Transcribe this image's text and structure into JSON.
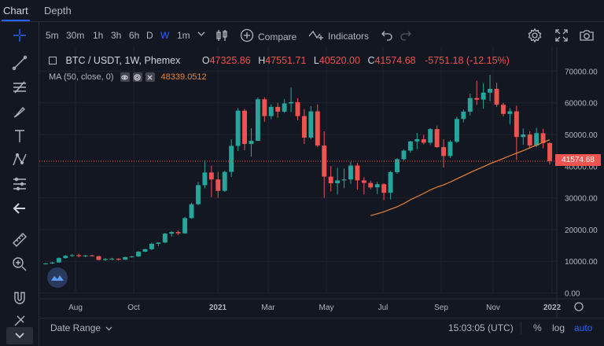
{
  "tabs": [
    {
      "label": "Chart",
      "active": true
    },
    {
      "label": "Depth",
      "active": false
    }
  ],
  "toolbar": {
    "timeframes": [
      {
        "label": "5m",
        "active": false
      },
      {
        "label": "30m",
        "active": false
      },
      {
        "label": "1h",
        "active": false
      },
      {
        "label": "3h",
        "active": false
      },
      {
        "label": "6h",
        "active": false
      },
      {
        "label": "D",
        "active": false
      },
      {
        "label": "W",
        "active": true
      },
      {
        "label": "1m",
        "active": false
      }
    ],
    "compare_label": "Compare",
    "indicators_label": "Indicators"
  },
  "left_tools": [
    "crosshair-icon",
    "trend-line-icon",
    "fib-icon",
    "brush-icon",
    "text-icon",
    "pattern-icon",
    "measure-icon",
    "back-arrow-icon",
    "ruler-icon",
    "zoom-in-icon",
    "magnet-icon",
    "lock-icon"
  ],
  "legend": {
    "symbol": "BTC / USDT, 1W, Phemex",
    "o_label": "O",
    "o_value": "47325.86",
    "h_label": "H",
    "h_value": "47551.71",
    "l_label": "L",
    "l_value": "40520.00",
    "c_label": "C",
    "c_value": "41574.68",
    "change": "-5751.18 (-12.15%)"
  },
  "ma": {
    "label": "MA (50, close, 0)",
    "value": "48339.0512"
  },
  "current_price": "41574.68",
  "bottom": {
    "date_range": "Date Range",
    "clock": "15:03:05 (UTC)",
    "percent": "%",
    "log": "log",
    "auto": "auto"
  },
  "colors": {
    "up": "#26a69a",
    "down": "#ef5350",
    "ma": "#e9853a",
    "background": "#131722",
    "accent": "#2962ff"
  },
  "chart_data": {
    "type": "candlestick",
    "x_ticks": [
      "Aug",
      "Oct",
      "2021",
      "Mar",
      "May",
      "Jul",
      "Sep",
      "Nov",
      "2022"
    ],
    "y_ticks": [
      "70000.00",
      "60000.00",
      "50000.00",
      "40000.00",
      "30000.00",
      "20000.00",
      "10000.00",
      "0.00"
    ],
    "ylim": [
      0,
      70000
    ],
    "candles": [
      [
        9200,
        9400,
        9000,
        9300
      ],
      [
        9300,
        9800,
        9100,
        9600
      ],
      [
        9600,
        11200,
        9500,
        11000
      ],
      [
        11000,
        12000,
        10800,
        11700
      ],
      [
        11700,
        12300,
        11400,
        11900
      ],
      [
        11900,
        12400,
        11200,
        11600
      ],
      [
        11600,
        12000,
        11300,
        11800
      ],
      [
        11800,
        12100,
        11500,
        11600
      ],
      [
        11600,
        11700,
        10300,
        10400
      ],
      [
        10400,
        11000,
        10100,
        10700
      ],
      [
        10700,
        11100,
        10400,
        10800
      ],
      [
        10800,
        10900,
        10200,
        10500
      ],
      [
        10500,
        11500,
        10400,
        11300
      ],
      [
        11300,
        11700,
        11100,
        11500
      ],
      [
        11500,
        13200,
        11400,
        13000
      ],
      [
        13000,
        13900,
        12900,
        13800
      ],
      [
        13800,
        15900,
        13500,
        15500
      ],
      [
        15500,
        16000,
        14800,
        15900
      ],
      [
        15900,
        18900,
        15700,
        18700
      ],
      [
        18700,
        19500,
        17800,
        19200
      ],
      [
        19200,
        19700,
        18200,
        18800
      ],
      [
        18800,
        24000,
        18600,
        23600
      ],
      [
        23600,
        28500,
        23400,
        28000
      ],
      [
        28000,
        35000,
        27700,
        34000
      ],
      [
        34000,
        41900,
        33000,
        38000
      ],
      [
        38000,
        40100,
        30200,
        35800
      ],
      [
        35800,
        38200,
        30000,
        32200
      ],
      [
        32200,
        38500,
        31900,
        38200
      ],
      [
        38200,
        48500,
        36600,
        46400
      ],
      [
        46400,
        58300,
        44800,
        57500
      ],
      [
        57500,
        58100,
        45000,
        47000
      ],
      [
        47000,
        52000,
        43000,
        48000
      ],
      [
        48000,
        61700,
        48000,
        61100
      ],
      [
        61100,
        61700,
        54000,
        55800
      ],
      [
        55800,
        59500,
        54800,
        58700
      ],
      [
        58700,
        60000,
        55300,
        57200
      ],
      [
        57200,
        61200,
        56800,
        59800
      ],
      [
        59800,
        64800,
        57100,
        60200
      ],
      [
        60200,
        61400,
        54500,
        55800
      ],
      [
        55800,
        58000,
        47000,
        49000
      ],
      [
        49000,
        58900,
        48500,
        57300
      ],
      [
        57300,
        59500,
        46000,
        46500
      ],
      [
        46500,
        51000,
        30000,
        36700
      ],
      [
        36700,
        40000,
        32000,
        34600
      ],
      [
        34600,
        39500,
        31000,
        35500
      ],
      [
        35500,
        39300,
        33000,
        35800
      ],
      [
        35800,
        41300,
        34400,
        40200
      ],
      [
        40200,
        41000,
        32600,
        35500
      ],
      [
        35500,
        36500,
        31100,
        34700
      ],
      [
        34700,
        35400,
        32700,
        33300
      ],
      [
        33300,
        35000,
        31200,
        34300
      ],
      [
        34300,
        34600,
        29300,
        31600
      ],
      [
        31600,
        38500,
        29500,
        38100
      ],
      [
        38100,
        42500,
        37600,
        42200
      ],
      [
        42200,
        45300,
        41700,
        44900
      ],
      [
        44900,
        48000,
        44200,
        47800
      ],
      [
        47800,
        50500,
        45400,
        48500
      ],
      [
        48500,
        49900,
        46900,
        47400
      ],
      [
        47400,
        52000,
        46700,
        51700
      ],
      [
        51700,
        52800,
        45800,
        46000
      ],
      [
        46000,
        48500,
        39600,
        43200
      ],
      [
        43200,
        48200,
        42600,
        47700
      ],
      [
        47700,
        55600,
        47300,
        54900
      ],
      [
        54900,
        57900,
        53800,
        57200
      ],
      [
        57200,
        62900,
        56000,
        61500
      ],
      [
        61500,
        67000,
        59300,
        61000
      ],
      [
        61000,
        66200,
        58100,
        63200
      ],
      [
        63200,
        68800,
        60500,
        64400
      ],
      [
        64400,
        66300,
        58700,
        59400
      ],
      [
        59400,
        60000,
        55700,
        56500
      ],
      [
        56500,
        58300,
        53200,
        57300
      ],
      [
        57300,
        59100,
        42000,
        49200
      ],
      [
        49200,
        51900,
        46800,
        50000
      ],
      [
        50000,
        51000,
        45500,
        46500
      ],
      [
        46500,
        52100,
        46000,
        50400
      ],
      [
        50400,
        51800,
        45600,
        47300
      ],
      [
        47300,
        47551,
        40520,
        41574
      ]
    ],
    "ma_series": [
      {
        "name": "MA (50, close, 0)",
        "values": [
          null,
          null,
          null,
          null,
          null,
          null,
          null,
          null,
          null,
          null,
          null,
          null,
          null,
          null,
          null,
          null,
          null,
          null,
          null,
          null,
          null,
          null,
          null,
          null,
          null,
          null,
          null,
          null,
          null,
          null,
          null,
          null,
          null,
          null,
          null,
          null,
          null,
          null,
          null,
          null,
          null,
          null,
          null,
          null,
          null,
          null,
          null,
          null,
          null,
          24400,
          25000,
          25600,
          26400,
          27200,
          28200,
          29400,
          30400,
          31400,
          32500,
          33400,
          34100,
          35000,
          36000,
          37000,
          38000,
          38900,
          39800,
          40800,
          41600,
          42400,
          43300,
          44100,
          44900,
          45800,
          46600,
          47500,
          48339
        ]
      }
    ]
  }
}
